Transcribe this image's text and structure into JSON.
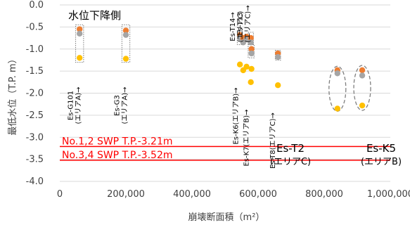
{
  "chart_data": {
    "type": "scatter",
    "xlabel": "崩壊断面積（m²）",
    "ylabel": "最低水位（T.P. m）",
    "xlim": [
      0,
      1000000
    ],
    "ylim": [
      -4.0,
      0.0
    ],
    "x_ticks": [
      "0",
      "200,000",
      "400,000",
      "600,000",
      "800,000",
      "1,000,000"
    ],
    "y_ticks": [
      "0.0",
      "-0.5",
      "-1.0",
      "-1.5",
      "-2.0",
      "-2.5",
      "-3.0",
      "-3.5",
      "-4.0"
    ],
    "grid": "horizontal",
    "colors": {
      "orange": "#ed7d31",
      "gray": "#a5a5a5",
      "yellow": "#ffc000",
      "swp": "#ff0000",
      "grid": "#d9d9d9"
    },
    "series": [
      {
        "x": [
          60000,
          60000,
          60000,
          200000,
          200000,
          200000,
          545000,
          545000,
          545000,
          555000,
          555000,
          555000,
          565000,
          565000,
          565000,
          578000,
          578000,
          578000,
          580000,
          580000,
          580000,
          660000,
          660000,
          660000,
          840000,
          840000,
          840000,
          915000,
          915000,
          915000
        ],
        "y": [
          -0.55,
          -0.65,
          -1.2,
          -0.58,
          -0.68,
          -1.22,
          -0.68,
          -0.75,
          -1.35,
          -0.75,
          -0.85,
          -1.48,
          -0.72,
          -0.78,
          -1.4,
          -0.75,
          -0.85,
          -1.75,
          -1.0,
          -1.1,
          -1.45,
          -1.1,
          -1.18,
          -1.82,
          -1.48,
          -1.55,
          -2.35,
          -1.48,
          -1.6,
          -2.28
        ],
        "colors": [
          "orange",
          "gray",
          "yellow",
          "orange",
          "gray",
          "yellow",
          "orange",
          "gray",
          "yellow",
          "orange",
          "gray",
          "yellow",
          "orange",
          "gray",
          "yellow",
          "orange",
          "gray",
          "yellow",
          "orange",
          "gray",
          "yellow",
          "orange",
          "gray",
          "yellow",
          "orange",
          "gray",
          "yellow",
          "orange",
          "gray",
          "yellow"
        ]
      }
    ],
    "reference_lines": [
      {
        "y": -3.21,
        "label": "No.1,2 SWP T.P.-3.21m"
      },
      {
        "y": -3.52,
        "label": "No.3,4 SWP T.P.-3.52m"
      }
    ],
    "annotations": [
      {
        "text": "水位下降側"
      }
    ],
    "well_labels": [
      {
        "lines": [
          "Es-G101",
          "(エリアA)→"
        ],
        "x": 60000
      },
      {
        "lines": [
          "Es-G3",
          "(エリアA)→"
        ],
        "x": 200000
      },
      {
        "lines": [
          "Es-K6(エリアB)→"
        ],
        "x": 548000
      },
      {
        "lines": [
          "Es-K7(エリアB)→"
        ],
        "x": 580000
      },
      {
        "lines": [
          "Es-T8(エリアC)→"
        ],
        "x": 660000
      },
      {
        "lines": [
          "Es-T14→",
          "(エリアC)"
        ],
        "x": 550000
      },
      {
        "lines": [
          "Es-T13",
          "(エリアC)→"
        ],
        "x": 572000
      }
    ],
    "side_labels": [
      {
        "lines": [
          "Es-T2",
          "(エリアC)"
        ],
        "x": 855000
      },
      {
        "lines": [
          "Es-K5",
          "(エリアB)"
        ],
        "x": 935000
      }
    ]
  }
}
